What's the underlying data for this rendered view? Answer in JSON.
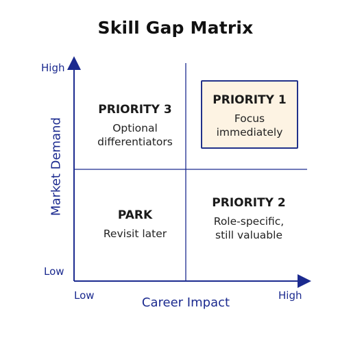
{
  "title": "Skill Gap Matrix",
  "axes": {
    "y_label": "Market Demand",
    "y_high": "High",
    "y_low": "Low",
    "x_label": "Career Impact",
    "x_low": "Low",
    "x_high": "High"
  },
  "quadrants": {
    "top_left": {
      "heading": "PRIORITY 3",
      "line1": "Optional",
      "line2": "differentiators"
    },
    "top_right": {
      "heading": "PRIORITY 1",
      "line1": "Focus",
      "line2": "immediately",
      "highlighted": true
    },
    "bottom_left": {
      "heading": "PARK",
      "line1": "Revisit later",
      "line2": ""
    },
    "bottom_right": {
      "heading": "PRIORITY 2",
      "line1": "Role-specific,",
      "line2": "still valuable"
    }
  },
  "colors": {
    "axis": "#1b2a8f",
    "highlight_fill": "#fdf3e3",
    "highlight_border": "#203089"
  }
}
